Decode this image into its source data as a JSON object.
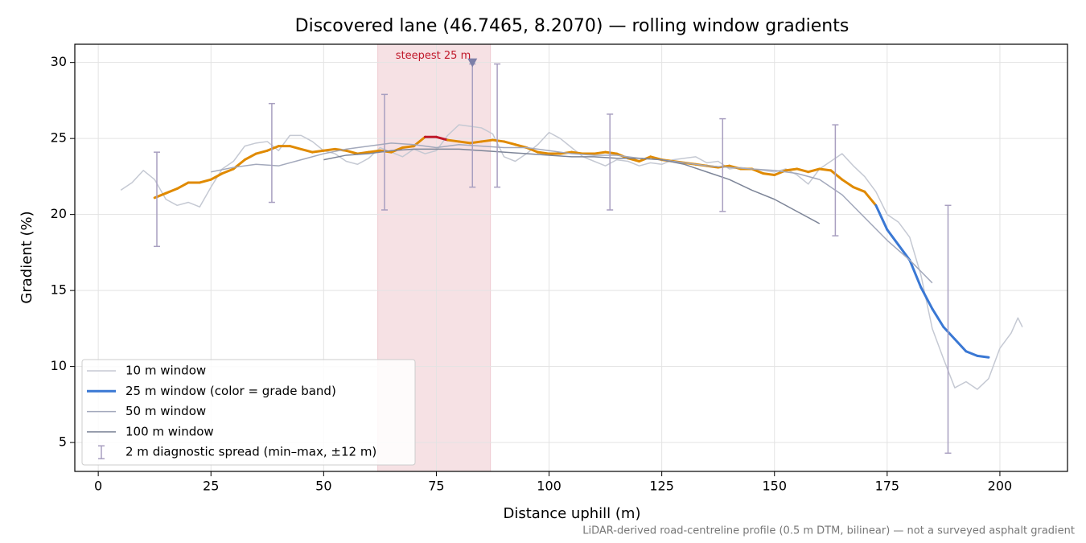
{
  "chart_data": {
    "type": "line",
    "title": "Discovered lane (46.7465, 8.2070) — rolling window gradients",
    "x_label": "Distance uphill (m)",
    "y_label": "Gradient (%)",
    "footnote": "LiDAR-derived road-centreline profile (0.5 m DTM, bilinear) — not a surveyed asphalt gradient",
    "xlim": [
      -5.2,
      215
    ],
    "ylim": [
      3.1,
      31.2
    ],
    "xticks": [
      0,
      25,
      50,
      75,
      100,
      125,
      150,
      175,
      200
    ],
    "yticks": [
      5,
      10,
      15,
      20,
      25,
      30
    ],
    "grid": true,
    "legend": "lower left",
    "highlight_span": {
      "x": [
        62,
        87
      ],
      "color": "#e8b4bc"
    },
    "annotations": [
      {
        "text": "steepest 25 m",
        "x": 83,
        "y": 30,
        "color": "#c0182a",
        "marker_color": "#7d7fa8"
      }
    ],
    "series": [
      {
        "name": "10 m window",
        "color": "#c5c9d3",
        "width": 1.5,
        "x": [
          5,
          7.5,
          10,
          12.5,
          15,
          17.5,
          20,
          22.5,
          25,
          27.5,
          30,
          32.5,
          35,
          37.5,
          40,
          42.5,
          45,
          47.5,
          50,
          52.5,
          55,
          57.5,
          60,
          62.5,
          65,
          67.5,
          70,
          72.5,
          75,
          77.5,
          80,
          82.5,
          85,
          87.5,
          90,
          92.5,
          95,
          97.5,
          100,
          102.5,
          105,
          107.5,
          110,
          112.5,
          115,
          117.5,
          120,
          122.5,
          125,
          127.5,
          130,
          132.5,
          135,
          137.5,
          140,
          142.5,
          145,
          147.5,
          150,
          152.5,
          155,
          157.5,
          160,
          162.5,
          165,
          167.5,
          170,
          172.5,
          175,
          177.5,
          180,
          182.5,
          185,
          187.5,
          190,
          192.5,
          195,
          197.5,
          200,
          202.5,
          204,
          205
        ],
        "values": [
          21.6,
          22.1,
          22.9,
          22.3,
          21.0,
          20.6,
          20.8,
          20.5,
          21.8,
          23.0,
          23.5,
          24.5,
          24.7,
          24.8,
          24.2,
          25.2,
          25.2,
          24.8,
          24.2,
          24.0,
          23.5,
          23.3,
          23.7,
          24.4,
          24.1,
          23.8,
          24.3,
          24.0,
          24.2,
          25.2,
          25.9,
          25.8,
          25.7,
          25.3,
          23.8,
          23.5,
          24.0,
          24.6,
          25.4,
          25.0,
          24.4,
          23.8,
          23.5,
          23.2,
          23.6,
          23.5,
          23.2,
          23.4,
          23.3,
          23.6,
          23.7,
          23.8,
          23.4,
          23.5,
          23.0,
          23.1,
          23.0,
          22.9,
          22.8,
          23.0,
          22.6,
          22.0,
          23.0,
          23.5,
          24.0,
          23.2,
          22.5,
          21.5,
          20.0,
          19.5,
          18.5,
          16.0,
          12.5,
          10.5,
          8.6,
          9.0,
          8.5,
          9.2,
          11.2,
          12.2,
          13.2,
          12.6
        ]
      },
      {
        "name": "25 m window (color = grade band)",
        "color": "#3a78d4",
        "width": 3,
        "grade_bands": [
          {
            "above": 25,
            "color": "#c0182a"
          },
          {
            "above": 20,
            "color": "#e08a00"
          }
        ],
        "x": [
          12.5,
          15,
          17.5,
          20,
          22.5,
          25,
          27.5,
          30,
          32.5,
          35,
          37.5,
          40,
          42.5,
          45,
          47.5,
          50,
          52.5,
          55,
          57.5,
          60,
          62.5,
          65,
          67.5,
          70,
          72.5,
          75,
          77.5,
          80,
          82.5,
          85,
          87.5,
          90,
          92.5,
          95,
          97.5,
          100,
          102.5,
          105,
          107.5,
          110,
          112.5,
          115,
          117.5,
          120,
          122.5,
          125,
          127.5,
          130,
          132.5,
          135,
          137.5,
          140,
          142.5,
          145,
          147.5,
          150,
          152.5,
          155,
          157.5,
          160,
          162.5,
          165,
          167.5,
          170,
          172.5,
          175,
          177.5,
          180,
          182.5,
          185,
          187.5,
          190,
          192.5,
          195,
          197.5
        ],
        "values": [
          21.1,
          21.4,
          21.7,
          22.1,
          22.1,
          22.3,
          22.7,
          23.0,
          23.6,
          24.0,
          24.2,
          24.5,
          24.5,
          24.3,
          24.1,
          24.2,
          24.3,
          24.2,
          24.0,
          24.1,
          24.2,
          24.1,
          24.4,
          24.5,
          25.1,
          25.1,
          24.9,
          24.8,
          24.7,
          24.8,
          24.9,
          24.8,
          24.6,
          24.4,
          24.1,
          24.0,
          24.0,
          24.1,
          24.0,
          24.0,
          24.1,
          24.0,
          23.7,
          23.5,
          23.8,
          23.6,
          23.5,
          23.4,
          23.3,
          23.2,
          23.1,
          23.2,
          23.0,
          23.0,
          22.7,
          22.6,
          22.9,
          23.0,
          22.8,
          23.0,
          22.9,
          22.3,
          21.8,
          21.5,
          20.6,
          19.0,
          18.0,
          17.0,
          15.2,
          13.8,
          12.6,
          11.8,
          11.0,
          10.7,
          10.6
        ]
      },
      {
        "name": "50 m window",
        "color": "#a3a9bc",
        "width": 1.5,
        "x": [
          25,
          30,
          35,
          40,
          45,
          50,
          55,
          60,
          65,
          70,
          75,
          80,
          85,
          90,
          95,
          100,
          105,
          110,
          115,
          120,
          125,
          130,
          135,
          140,
          145,
          150,
          155,
          160,
          165,
          170,
          175,
          180,
          185
        ],
        "values": [
          22.8,
          23.1,
          23.3,
          23.2,
          23.6,
          24.0,
          24.3,
          24.5,
          24.7,
          24.6,
          24.4,
          24.6,
          24.5,
          24.4,
          24.4,
          24.2,
          24.0,
          23.9,
          23.9,
          23.7,
          23.6,
          23.4,
          23.2,
          23.1,
          23.0,
          22.9,
          22.7,
          22.3,
          21.3,
          19.8,
          18.3,
          17.0,
          15.5
        ]
      },
      {
        "name": "100 m window",
        "color": "#7d8598",
        "width": 1.5,
        "x": [
          50,
          55,
          60,
          65,
          70,
          75,
          80,
          85,
          90,
          95,
          100,
          105,
          110,
          115,
          120,
          125,
          130,
          135,
          140,
          145,
          150,
          155,
          160
        ],
        "values": [
          23.6,
          23.9,
          24.0,
          24.2,
          24.3,
          24.3,
          24.3,
          24.2,
          24.1,
          24.0,
          23.9,
          23.8,
          23.8,
          23.7,
          23.7,
          23.6,
          23.3,
          22.8,
          22.3,
          21.6,
          21.0,
          20.2,
          19.4
        ]
      }
    ],
    "error_bars": {
      "name": "2 m diagnostic spread (min–max, ±12 m)",
      "color": "#a89fc0",
      "x": [
        13,
        38.5,
        63.5,
        83,
        88.5,
        113.5,
        138.5,
        163.5,
        188.5
      ],
      "lows": [
        17.9,
        20.8,
        20.3,
        21.8,
        21.8,
        20.3,
        20.2,
        18.6,
        4.3
      ],
      "highs": [
        24.1,
        27.3,
        27.9,
        29.9,
        29.9,
        26.6,
        26.3,
        25.9,
        20.6
      ]
    }
  }
}
